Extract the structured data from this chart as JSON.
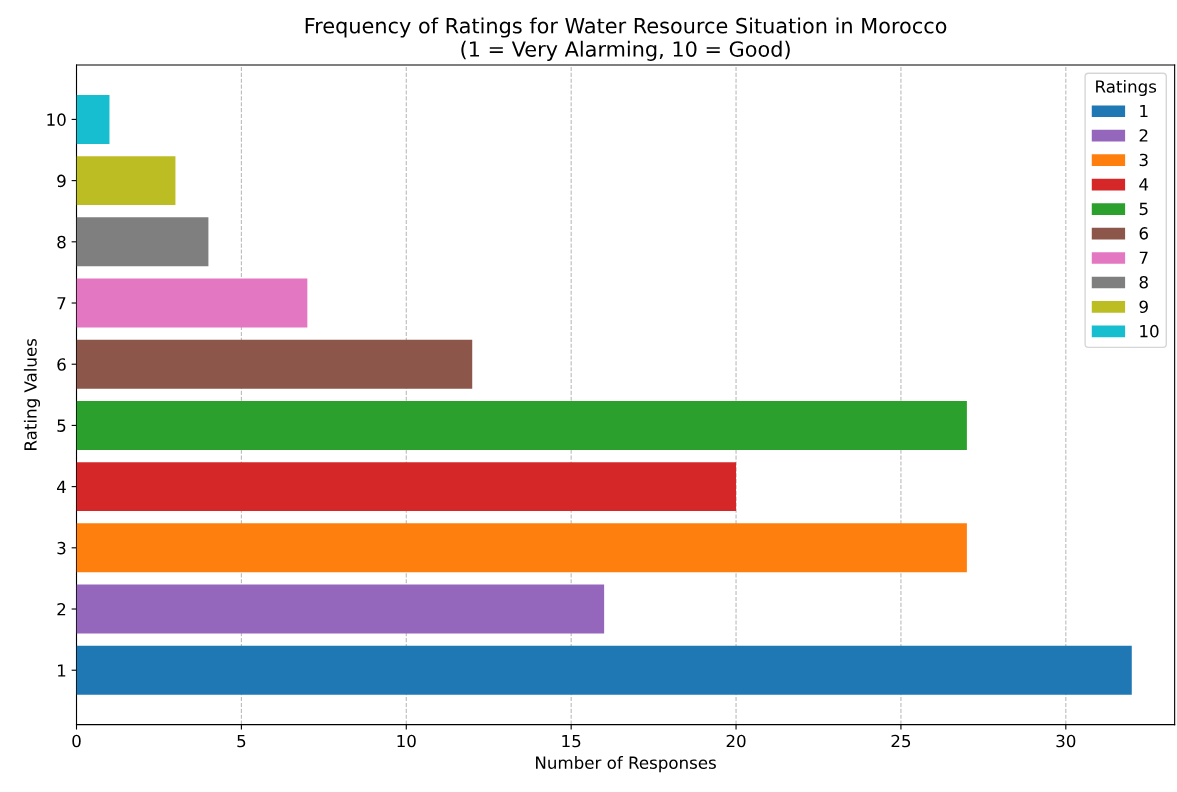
{
  "chart_data": {
    "type": "bar",
    "orientation": "horizontal",
    "title": "Frequency of Ratings for Water Resource Situation in Morocco\n(1 = Very Alarming, 10 = Good)",
    "xlabel": "Number of Responses",
    "ylabel": "Rating Values",
    "categories": [
      "10",
      "9",
      "8",
      "7",
      "6",
      "5",
      "4",
      "3",
      "2",
      "1"
    ],
    "series": [
      {
        "name": "1",
        "color": "#1f77b4",
        "values": [
          null,
          null,
          null,
          null,
          null,
          null,
          null,
          null,
          null,
          32
        ]
      },
      {
        "name": "2",
        "color": "#9467bd",
        "values": [
          null,
          null,
          null,
          null,
          null,
          null,
          null,
          null,
          16,
          null
        ]
      },
      {
        "name": "3",
        "color": "#ff7f0e",
        "values": [
          null,
          null,
          null,
          null,
          null,
          null,
          null,
          27,
          null,
          null
        ]
      },
      {
        "name": "4",
        "color": "#d62728",
        "values": [
          null,
          null,
          null,
          null,
          null,
          null,
          20,
          null,
          null,
          null
        ]
      },
      {
        "name": "5",
        "color": "#2ca02c",
        "values": [
          null,
          null,
          null,
          null,
          null,
          27,
          null,
          null,
          null,
          null
        ]
      },
      {
        "name": "6",
        "color": "#8c564b",
        "values": [
          null,
          null,
          null,
          null,
          12,
          null,
          null,
          null,
          null,
          null
        ]
      },
      {
        "name": "7",
        "color": "#e377c2",
        "values": [
          null,
          null,
          null,
          7,
          null,
          null,
          null,
          null,
          null,
          null
        ]
      },
      {
        "name": "8",
        "color": "#7f7f7f",
        "values": [
          null,
          null,
          4,
          null,
          null,
          null,
          null,
          null,
          null,
          null
        ]
      },
      {
        "name": "9",
        "color": "#bcbd22",
        "values": [
          null,
          3,
          null,
          null,
          null,
          null,
          null,
          null,
          null,
          null
        ]
      },
      {
        "name": "10",
        "color": "#17becf",
        "values": [
          1,
          null,
          null,
          null,
          null,
          null,
          null,
          null,
          null,
          null
        ]
      }
    ],
    "xlim": [
      0,
      33.3
    ],
    "xticks": [
      0,
      5,
      10,
      15,
      20,
      25,
      30
    ],
    "grid": "x",
    "legend": "top right",
    "legend_title": "Ratings"
  }
}
